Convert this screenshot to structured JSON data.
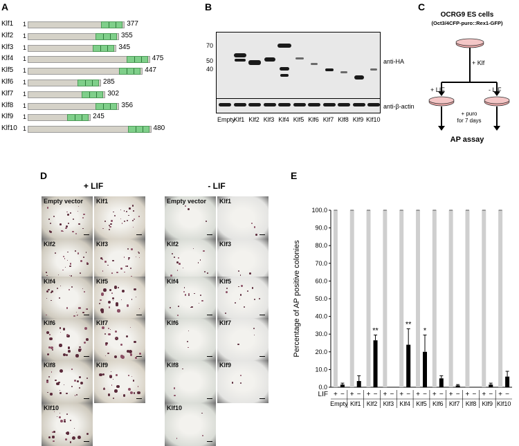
{
  "panels": {
    "a": "A",
    "b": "B",
    "c": "C",
    "d": "D",
    "e": "E"
  },
  "panel_a": {
    "start": "1",
    "proteins": [
      {
        "name": "Klf1",
        "length": "377"
      },
      {
        "name": "Klf2",
        "length": "355"
      },
      {
        "name": "Klf3",
        "length": "345"
      },
      {
        "name": "Klf4",
        "length": "475"
      },
      {
        "name": "Klf5",
        "length": "447"
      },
      {
        "name": "Klf6",
        "length": "285"
      },
      {
        "name": "Klf7",
        "length": "302"
      },
      {
        "name": "Klf8",
        "length": "356"
      },
      {
        "name": "Klf9",
        "length": "245"
      },
      {
        "name": "Klf10",
        "length": "480"
      }
    ]
  },
  "panel_b": {
    "mw_markers": [
      "70",
      "50",
      "40"
    ],
    "label_top": "anti-HA",
    "label_bottom": "anti-β-actin",
    "lanes": [
      "Empty",
      "Klf1",
      "Klf2",
      "Klf3",
      "Klf4",
      "Klf5",
      "Klf6",
      "Klf7",
      "Klf8",
      "Klf9",
      "Klf10"
    ]
  },
  "panel_c": {
    "title": "OCRG9 ES cells",
    "subtitle": "(Oct3/4CFP-puro::Rex1-GFP)",
    "add": "+ Klf",
    "left": "+ LIF",
    "right": "- LIF",
    "puro_line1": "+ puro",
    "puro_line2": "for 7 days",
    "result": "AP assay"
  },
  "panel_d": {
    "plus_title": "+ LIF",
    "minus_title": "- LIF",
    "plus_tiles": [
      "Empty vector",
      "Klf1",
      "Klf2",
      "Klf3",
      "Klf4",
      "Klf5",
      "Klf6",
      "Klf7",
      "Klf8",
      "Klf9",
      "Klf10"
    ],
    "minus_tiles": [
      "Empty vector",
      "Klf1",
      "Klf2",
      "Klf3",
      "Klf4",
      "Klf5",
      "Klf6",
      "Klf7",
      "Klf8",
      "Klf9",
      "Klf10"
    ]
  },
  "chart_data": {
    "type": "bar",
    "ylabel": "Percentage of AP positive colonies",
    "ylim": [
      0,
      100
    ],
    "yticks": [
      "0.0",
      "10.0",
      "20.0",
      "30.0",
      "40.0",
      "50.0",
      "60.0",
      "70.0",
      "80.0",
      "90.0",
      "100.0"
    ],
    "row_label": "LIF",
    "conditions": [
      "+",
      "−"
    ],
    "categories": [
      "Empty",
      "Klf1",
      "Klf2",
      "Klf3",
      "Klf4",
      "Klf5",
      "Klf6",
      "Klf7",
      "Klf8",
      "Klf9",
      "Klf10"
    ],
    "series": [
      {
        "values": [
          100,
          100,
          100,
          100,
          100,
          100,
          100,
          100,
          100,
          100,
          100
        ],
        "errors": [
          0,
          0,
          0,
          0,
          0,
          0,
          0,
          0,
          0,
          0,
          0
        ],
        "color": "#cfcfcf"
      },
      {
        "values": [
          1.5,
          3.5,
          26.5,
          0,
          24,
          20,
          5,
          1,
          0,
          1.5,
          6
        ],
        "errors": [
          0.8,
          3,
          3,
          0,
          9,
          9.5,
          1.5,
          0.5,
          0,
          0.8,
          3
        ],
        "color": "#000000"
      }
    ],
    "significance": [
      {
        "category": "Klf2",
        "mark": "**"
      },
      {
        "category": "Klf4",
        "mark": "**"
      },
      {
        "category": "Klf5",
        "mark": "*"
      }
    ]
  }
}
